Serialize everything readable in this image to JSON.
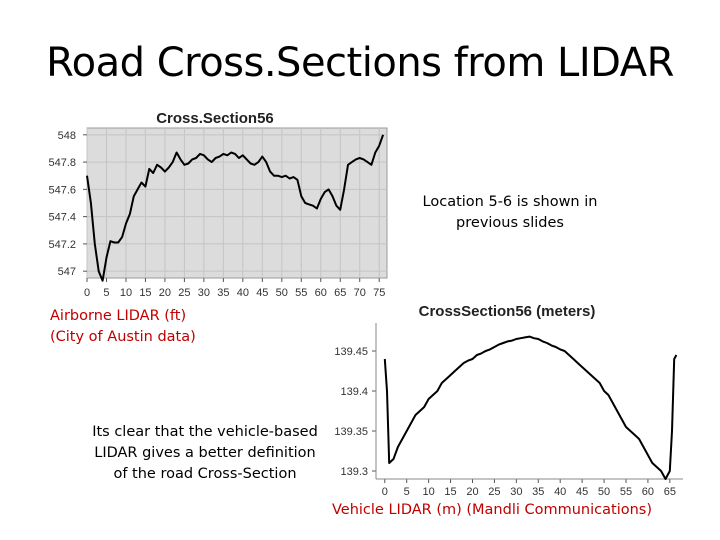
{
  "slide": {
    "title": "Road Cross.Sections from LIDAR",
    "location_note": "Location 5-6 is shown in previous slides",
    "airborne_note": [
      "Airborne LIDAR (ft)",
      "(City of Austin data)"
    ],
    "vehicle_note": "Its clear that the vehicle-based LIDAR gives a better definition of the road Cross-Section",
    "vehicle_source": "Vehicle LIDAR (m) (Mandli Communications)"
  },
  "colors": {
    "plot_bg": "#dcdcdc",
    "line": "#000000",
    "accent_red": "#c00000"
  },
  "chart_data": [
    {
      "type": "line",
      "title": "Cross.Section56",
      "xlabel": "",
      "ylabel": "",
      "xlim": [
        0,
        77
      ],
      "ylim": [
        546.95,
        548.05
      ],
      "grid": true,
      "x_ticks": [
        "0",
        "5",
        "10",
        "15",
        "20",
        "25",
        "30",
        "35",
        "40",
        "45",
        "50",
        "55",
        "60",
        "65",
        "70",
        "75"
      ],
      "y_ticks": [
        "548",
        "547.8",
        "547.6",
        "547.4",
        "547.2",
        "547"
      ],
      "series": [
        {
          "x": [
            0,
            1,
            2,
            3,
            4,
            5,
            6,
            7,
            8,
            9,
            10,
            11,
            12,
            13,
            14,
            15,
            16,
            17,
            18,
            19,
            20,
            21,
            22,
            23,
            24,
            25,
            26,
            27,
            28,
            29,
            30,
            31,
            32,
            33,
            34,
            35,
            36,
            37,
            38,
            39,
            40,
            41,
            42,
            43,
            44,
            45,
            46,
            47,
            48,
            49,
            50,
            51,
            52,
            53,
            54,
            55,
            56,
            57,
            58,
            59,
            60,
            61,
            62,
            63,
            64,
            65,
            66,
            67,
            68,
            69,
            70,
            71,
            72,
            73,
            74,
            75,
            76
          ],
          "y": [
            547.7,
            547.5,
            547.2,
            547.0,
            546.93,
            547.1,
            547.22,
            547.21,
            547.21,
            547.25,
            547.35,
            547.42,
            547.55,
            547.6,
            547.65,
            547.62,
            547.75,
            547.72,
            547.78,
            547.76,
            547.73,
            547.76,
            547.8,
            547.87,
            547.82,
            547.78,
            547.79,
            547.82,
            547.83,
            547.86,
            547.85,
            547.82,
            547.8,
            547.83,
            547.84,
            547.86,
            547.85,
            547.87,
            547.86,
            547.83,
            547.85,
            547.82,
            547.79,
            547.78,
            547.8,
            547.84,
            547.8,
            547.73,
            547.7,
            547.7,
            547.69,
            547.7,
            547.68,
            547.69,
            547.67,
            547.55,
            547.5,
            547.49,
            547.48,
            547.46,
            547.53,
            547.58,
            547.6,
            547.55,
            547.48,
            547.45,
            547.6,
            547.78,
            547.8,
            547.82,
            547.83,
            547.82,
            547.8,
            547.78,
            547.87,
            547.92,
            548.0
          ]
        }
      ]
    },
    {
      "type": "line",
      "title": "CrossSection56 (meters)",
      "xlabel": "",
      "ylabel": "",
      "xlim": [
        -2,
        68
      ],
      "ylim": [
        139.29,
        139.485
      ],
      "grid": false,
      "x_ticks": [
        "0",
        "5",
        "10",
        "15",
        "20",
        "25",
        "30",
        "35",
        "40",
        "45",
        "50",
        "55",
        "60",
        "65"
      ],
      "y_ticks": [
        "139.45",
        "139.4",
        "139.35",
        "139.3"
      ],
      "series": [
        {
          "x": [
            0,
            0.5,
            1,
            2,
            3,
            4,
            5,
            6,
            7,
            8,
            9,
            10,
            11,
            12,
            13,
            14,
            15,
            16,
            17,
            18,
            19,
            20,
            21,
            22,
            23,
            24,
            25,
            26,
            27,
            28,
            29,
            30,
            31,
            32,
            33,
            34,
            35,
            36,
            37,
            38,
            39,
            40,
            41,
            42,
            43,
            44,
            45,
            46,
            47,
            48,
            49,
            50,
            51,
            52,
            53,
            54,
            55,
            56,
            57,
            58,
            59,
            60,
            61,
            62,
            63,
            64,
            65,
            65.5,
            66,
            66.5
          ],
          "y": [
            139.44,
            139.4,
            139.31,
            139.315,
            139.33,
            139.34,
            139.35,
            139.36,
            139.37,
            139.375,
            139.38,
            139.39,
            139.395,
            139.4,
            139.41,
            139.415,
            139.42,
            139.425,
            139.43,
            139.435,
            139.438,
            139.44,
            139.445,
            139.447,
            139.45,
            139.452,
            139.455,
            139.458,
            139.46,
            139.462,
            139.463,
            139.465,
            139.466,
            139.467,
            139.468,
            139.466,
            139.465,
            139.462,
            139.46,
            139.457,
            139.455,
            139.452,
            139.45,
            139.445,
            139.44,
            139.435,
            139.43,
            139.425,
            139.42,
            139.415,
            139.41,
            139.4,
            139.395,
            139.385,
            139.375,
            139.365,
            139.355,
            139.35,
            139.345,
            139.34,
            139.33,
            139.32,
            139.31,
            139.305,
            139.3,
            139.29,
            139.3,
            139.35,
            139.44,
            139.445
          ]
        }
      ]
    }
  ]
}
